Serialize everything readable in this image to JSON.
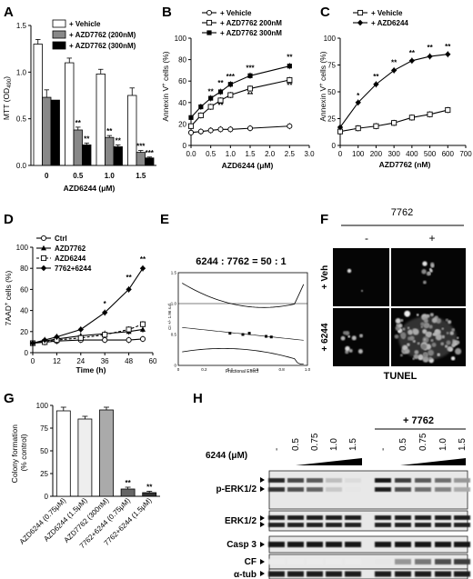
{
  "panels": {
    "A": {
      "letter": "A",
      "type": "bar",
      "ylabel": "MTT (OD490)",
      "xlabel": "AZD6244 (μM)",
      "ylim": [
        0,
        1.5
      ],
      "yticks": [
        "0.0",
        "0.5",
        "1.0",
        "1.5"
      ],
      "categories": [
        "0",
        "0.5",
        "1.0",
        "1.5"
      ],
      "series": [
        {
          "name": "+ Vehicle",
          "color": "#ffffff",
          "values": [
            1.3,
            1.1,
            0.98,
            0.75
          ],
          "err": [
            0.05,
            0.05,
            0.05,
            0.08
          ]
        },
        {
          "name": "+ AZD7762 (200nM)",
          "color": "#888888",
          "values": [
            0.73,
            0.38,
            0.3,
            0.14
          ],
          "err": [
            0.08,
            0.03,
            0.02,
            0.02
          ]
        },
        {
          "name": "+ AZD7762 (300nM)",
          "color": "#000000",
          "values": [
            0.7,
            0.22,
            0.2,
            0.08
          ],
          "err": [
            0.0,
            0.02,
            0.02,
            0.01
          ]
        }
      ],
      "annotations": [
        {
          "cat": 1,
          "series": 1,
          "text": "**"
        },
        {
          "cat": 1,
          "series": 2,
          "text": "**"
        },
        {
          "cat": 2,
          "series": 1,
          "text": "**"
        },
        {
          "cat": 2,
          "series": 2,
          "text": "**"
        },
        {
          "cat": 3,
          "series": 1,
          "text": "***"
        },
        {
          "cat": 3,
          "series": 2,
          "text": "***"
        }
      ]
    },
    "B": {
      "letter": "B",
      "type": "line",
      "ylabel": "Annexin V+ cells (%)",
      "xlabel": "AZD6244 (μM)",
      "xlim": [
        0,
        3.0
      ],
      "ylim": [
        0,
        100
      ],
      "xticks": [
        "0.0",
        "0.5",
        "1.0",
        "1.5",
        "2.0",
        "2.5",
        "3.0"
      ],
      "yticks": [
        "0",
        "20",
        "40",
        "60",
        "80",
        "100"
      ],
      "x": [
        0,
        0.25,
        0.5,
        0.75,
        1.0,
        1.5,
        2.5
      ],
      "series": [
        {
          "name": "+ Vehicle",
          "marker": "circle-open",
          "values": [
            12,
            13,
            14,
            15,
            15,
            16,
            18
          ]
        },
        {
          "name": "+ AZD7762  200nM",
          "marker": "square-open",
          "values": [
            18,
            28,
            36,
            42,
            47,
            53,
            61
          ]
        },
        {
          "name": "+ AZD7762  300nM",
          "marker": "square-filled",
          "values": [
            26,
            36,
            44,
            50,
            57,
            65,
            74
          ]
        }
      ],
      "annotations": [
        {
          "x": 0.5,
          "y": 48,
          "text": "**"
        },
        {
          "x": 0.75,
          "y": 56,
          "text": "**"
        },
        {
          "x": 1.0,
          "y": 62,
          "text": "***"
        },
        {
          "x": 1.5,
          "y": 70,
          "text": "***"
        },
        {
          "x": 2.5,
          "y": 80,
          "text": "**"
        },
        {
          "x": 0.75,
          "y": 35,
          "text": "**"
        },
        {
          "x": 1.5,
          "y": 45,
          "text": "**"
        },
        {
          "x": 2.5,
          "y": 54,
          "text": "**"
        }
      ]
    },
    "C": {
      "letter": "C",
      "type": "line",
      "ylabel": "Annexin V+ cells (%)",
      "xlabel": "AZD7762 (nM)",
      "xlim": [
        0,
        700
      ],
      "ylim": [
        0,
        100
      ],
      "xticks": [
        "0",
        "100",
        "200",
        "300",
        "400",
        "500",
        "600",
        "700"
      ],
      "yticks": [
        "0",
        "25",
        "50",
        "75",
        "100"
      ],
      "x": [
        0,
        100,
        200,
        300,
        400,
        500,
        600
      ],
      "series": [
        {
          "name": "+ Vehicle",
          "marker": "square-open",
          "values": [
            13,
            16,
            18,
            21,
            26,
            29,
            33
          ]
        },
        {
          "name": "+ AZD6244",
          "marker": "diamond-filled",
          "values": [
            17,
            40,
            57,
            70,
            79,
            83,
            85
          ]
        }
      ],
      "annotations": [
        {
          "x": 100,
          "y": 44,
          "text": "*"
        },
        {
          "x": 200,
          "y": 62,
          "text": "**"
        },
        {
          "x": 300,
          "y": 75,
          "text": "**"
        },
        {
          "x": 400,
          "y": 84,
          "text": "**"
        },
        {
          "x": 500,
          "y": 89,
          "text": "**"
        },
        {
          "x": 600,
          "y": 90,
          "text": "**"
        }
      ]
    },
    "D": {
      "letter": "D",
      "type": "line",
      "ylabel": "7AAD+ cells (%)",
      "xlabel": "Time (h)",
      "xlim": [
        0,
        60
      ],
      "ylim": [
        0,
        100
      ],
      "xticks": [
        "0",
        "12",
        "24",
        "36",
        "48",
        "60"
      ],
      "yticks": [
        "0",
        "20",
        "40",
        "60",
        "80",
        "100"
      ],
      "x": [
        0,
        6,
        12,
        24,
        36,
        48,
        55
      ],
      "series": [
        {
          "name": "Ctrl",
          "marker": "circle-open",
          "dash": "",
          "values": [
            9,
            10,
            11,
            12,
            12,
            12,
            13
          ]
        },
        {
          "name": "AZD7762",
          "marker": "triangle-filled",
          "dash": "",
          "values": [
            9,
            11,
            13,
            16,
            18,
            20,
            22
          ]
        },
        {
          "name": "AZD6244",
          "marker": "square-open",
          "dash": "3,2",
          "values": [
            9,
            10,
            12,
            14,
            17,
            22,
            27
          ]
        },
        {
          "name": "7762+6244",
          "marker": "diamond-filled",
          "dash": "",
          "values": [
            9,
            12,
            15,
            22,
            38,
            60,
            80
          ]
        }
      ],
      "annotations": [
        {
          "x": 36,
          "y": 44,
          "text": "*"
        },
        {
          "x": 48,
          "y": 69,
          "text": "**"
        },
        {
          "x": 55,
          "y": 86,
          "text": "**"
        }
      ]
    },
    "E": {
      "letter": "E",
      "title": "6244 : 7762 = 50 : 1",
      "ylabel": "CI +/- 1.96 s.d.",
      "xlabel": "Fractional Effect",
      "xticks": [
        "0",
        "0.2",
        "0.4",
        "0.6",
        "0.8",
        "1.0"
      ],
      "yticks": [
        "0",
        "0.5",
        "1.0",
        "1.5"
      ],
      "x": [
        0.4,
        0.5,
        0.55,
        0.68,
        0.72
      ],
      "values": [
        0.52,
        0.5,
        0.52,
        0.47,
        0.46
      ]
    },
    "F": {
      "letter": "F",
      "drug": "7762",
      "col_minus": "-",
      "col_plus": "+",
      "row_veh": "+ Veh",
      "row_6244": "+ 6244",
      "footer": "TUNEL"
    },
    "G": {
      "letter": "G",
      "type": "bar",
      "ylabel": "Colony formation (% control)",
      "ylim": [
        0,
        100
      ],
      "yticks": [
        "0",
        "25",
        "50",
        "75",
        "100"
      ],
      "categories": [
        "AZD6244 (0.75μM)",
        "AZD6244 (1.5μM)",
        "AZD7762 (300nM)",
        "7762+6244 (0.75μM)",
        "7762+6244 (1.5μM)"
      ],
      "values": [
        94,
        85,
        95,
        8,
        4
      ],
      "err": [
        4,
        3,
        3,
        2,
        1.5
      ],
      "colors": [
        "#ffffff",
        "#eeeeee",
        "#aaaaaa",
        "#666666",
        "#333333"
      ],
      "annotations": [
        "",
        "",
        "",
        "**",
        "**"
      ]
    },
    "H": {
      "letter": "H",
      "treatment": "+ 7762",
      "dose_label": "6244 (μM)",
      "doses": [
        "-",
        "0.5",
        "0.75",
        "1.0",
        "1.5",
        "-",
        "0.5",
        "0.75",
        "1.0",
        "1.5"
      ],
      "bands": [
        "p-ERK1/2",
        "ERK1/2",
        "Casp 3",
        "CF",
        "α-tub"
      ]
    }
  }
}
